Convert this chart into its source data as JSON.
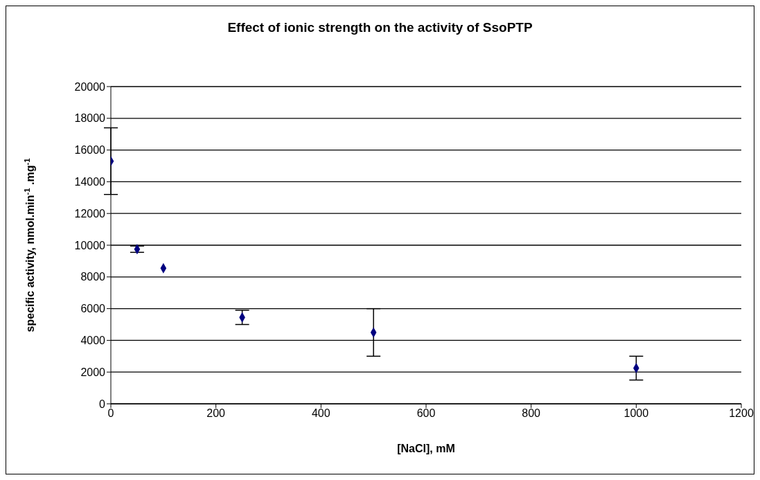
{
  "chart_data": {
    "type": "scatter",
    "title": "Effect of ionic strength on the activity of SsoPTP",
    "xlabel": "[NaCl], mM",
    "ylabel": "specific activity, nmol.min$^{-1}$ .mg$^{-1}$",
    "x": [
      0,
      50,
      100,
      250,
      500,
      1000
    ],
    "series": [
      {
        "color": "#000080",
        "values": [
          15300,
          9750,
          8550,
          5450,
          4500,
          2250
        ],
        "errors": [
          2100,
          200,
          null,
          450,
          1500,
          750
        ]
      }
    ],
    "xlim": [
      0,
      1200
    ],
    "xticks": [
      0,
      200,
      400,
      600,
      800,
      1000,
      1200
    ],
    "ylim": [
      0,
      20000
    ],
    "yticks": [
      0,
      2000,
      4000,
      6000,
      8000,
      10000,
      12000,
      14000,
      16000,
      18000,
      20000
    ],
    "grid": "y",
    "marker": "diamond"
  }
}
